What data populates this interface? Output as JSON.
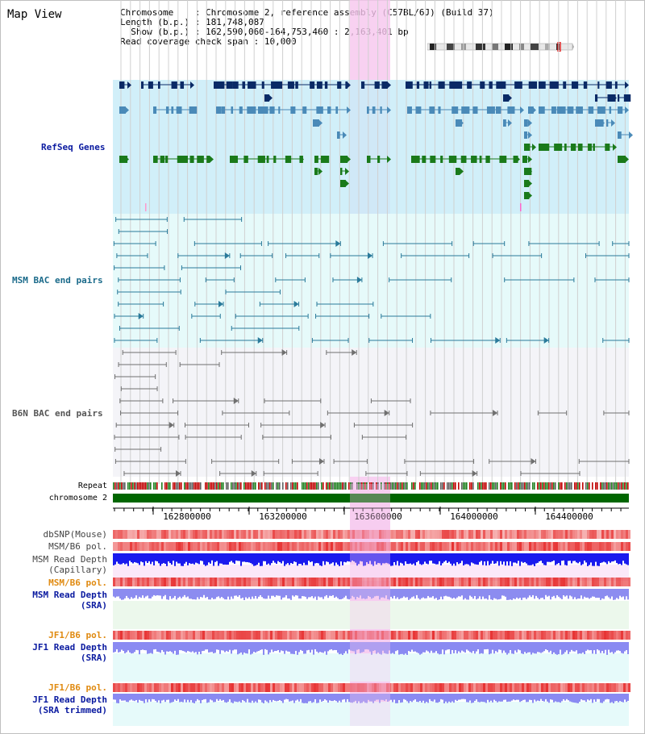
{
  "view_title": "Map View",
  "info": {
    "chromosome_key": "Chromosome",
    "chromosome_val": "Chromosome 2, reference assembly (C57BL/6J) (Build 37)",
    "length_key": "Length (b.p.)",
    "length_val": "181,748,087",
    "show_key": "Show (b.p.)",
    "show_val": "162,590,060-164,753,460 : 2,163,401 bp",
    "coverage_key": "Read coverage check span",
    "coverage_val": "10,000"
  },
  "tracks": {
    "refseq": "RefSeq Genes",
    "msm_bac": "MSM BAC end pairs",
    "b6n_bac": "B6N BAC end pairs",
    "repeat": "Repeat",
    "chromosome": "chromosome 2",
    "dbsnp": "dbSNP(Mouse)",
    "msm_b6_pol_1": "MSM/B6 pol.",
    "msm_read_depth_cap_1": "MSM Read Depth",
    "msm_read_depth_cap_2": "(Capillary)",
    "msm_b6_pol_2": "MSM/B6 pol.",
    "msm_read_depth_sra_1": "MSM Read Depth",
    "msm_read_depth_sra_2": "(SRA)",
    "jf1_b6_pol_1": "JF1/B6 pol.",
    "jf1_read_depth_sra_1": "JF1 Read Depth",
    "jf1_read_depth_sra_2": "(SRA)",
    "jf1_b6_pol_2": "JF1/B6 pol.",
    "jf1_read_depth_trim_1": "JF1 Read Depth",
    "jf1_read_depth_trim_2": "(SRA trimmed)"
  },
  "ruler": {
    "ticks": [
      "162800000",
      "163200000",
      "163600000",
      "164000000",
      "164400000"
    ]
  },
  "colors": {
    "refseq_dark": "#0a2a66",
    "refseq_mid": "#4a8ab8",
    "refseq_green": "#1a7a1a",
    "msm_bac": "#2a7a9a",
    "b6n_bac": "#707070",
    "highlight": "#f6c6ee",
    "label_blue": "#0a1aa0",
    "label_teal": "#1a6a8a",
    "label_grey": "#555555",
    "label_orange": "#e08a10"
  }
}
